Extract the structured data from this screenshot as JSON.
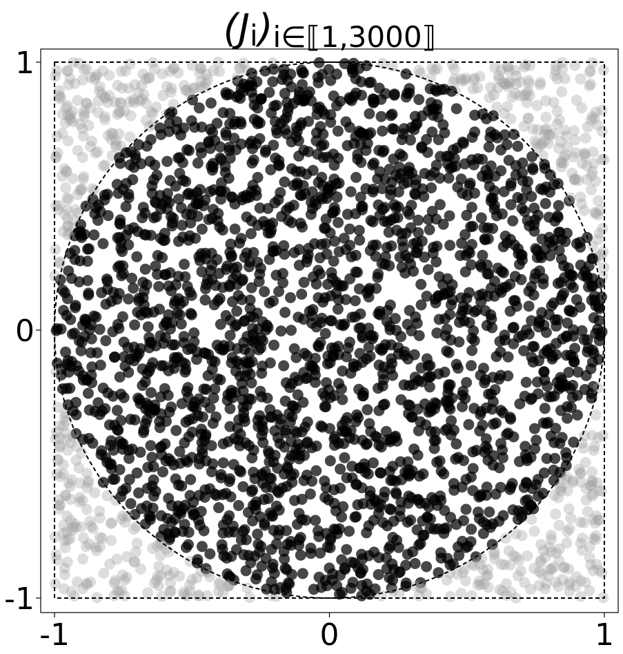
{
  "chart_data": {
    "type": "scatter",
    "title": "(J_i)_{i∈⟦1,3000⟧}",
    "title_parts": {
      "open": "(",
      "symbol": "J",
      "subscript_i": "i",
      "close": ")",
      "range": "i∈⟦1,3000⟧"
    },
    "xlabel": "",
    "ylabel": "",
    "xlim": [
      -1,
      1
    ],
    "ylim": [
      -1,
      1
    ],
    "x_ticks": [
      -1,
      0,
      1
    ],
    "y_ticks": [
      -1,
      0,
      1
    ],
    "x_tick_labels": [
      "-1",
      "0",
      "1"
    ],
    "y_tick_labels": [
      "-1",
      "0",
      "1"
    ],
    "grid": false,
    "n_points": 3000,
    "inside_unit_disk_color": "#000000",
    "inside_unit_disk_opacity": 0.72,
    "outside_unit_disk_color": "#9e9e9e",
    "outside_unit_disk_opacity": 0.35,
    "unit_circle_dashed": true,
    "square_boundary_dashed": true,
    "legend": "none"
  }
}
